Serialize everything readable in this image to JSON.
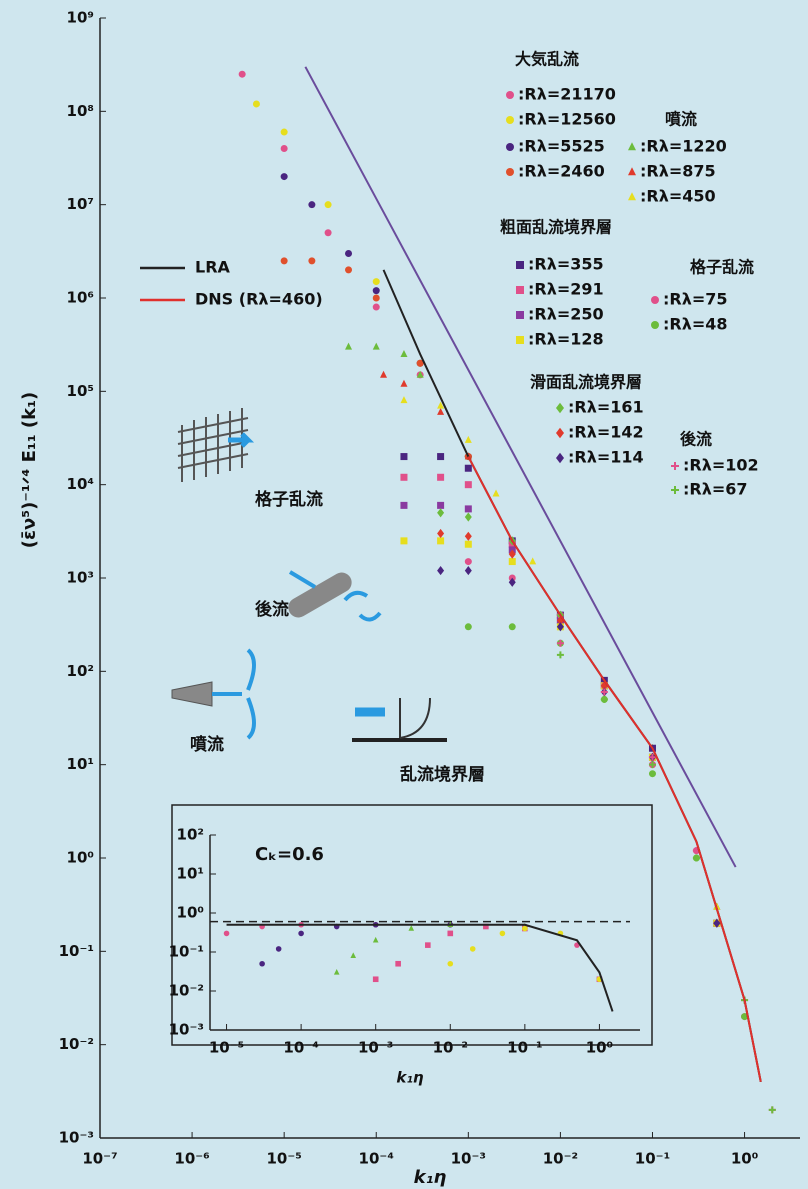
{
  "chart_data": [
    {
      "type": "scatter",
      "log_x": true,
      "log_y": true,
      "x_label": "k₁η",
      "y_label": "(ε̄ν⁵)⁻¹ᐟ⁴ E₁₁ (k₁)",
      "xlim": [
        1e-07,
        4
      ],
      "ylim": [
        0.001,
        1000000000.0
      ],
      "xticks": [
        {
          "value": 1e-07,
          "label": "10⁻⁷"
        },
        {
          "value": 1e-06,
          "label": "10⁻⁶"
        },
        {
          "value": 1e-05,
          "label": "10⁻⁵"
        },
        {
          "value": 0.0001,
          "label": "10⁻⁴"
        },
        {
          "value": 0.001,
          "label": "10⁻³"
        },
        {
          "value": 0.01,
          "label": "10⁻²"
        },
        {
          "value": 0.1,
          "label": "10⁻¹"
        },
        {
          "value": 1,
          "label": "10⁰"
        }
      ],
      "yticks": [
        {
          "value": 0.001,
          "label": "10⁻³"
        },
        {
          "value": 0.01,
          "label": "10⁻²"
        },
        {
          "value": 0.1,
          "label": "10⁻¹"
        },
        {
          "value": 1,
          "label": "10⁰"
        },
        {
          "value": 10,
          "label": "10¹"
        },
        {
          "value": 100,
          "label": "10²"
        },
        {
          "value": 1000.0,
          "label": "10³"
        },
        {
          "value": 10000.0,
          "label": "10⁴"
        },
        {
          "value": 100000.0,
          "label": "10⁵"
        },
        {
          "value": 1000000.0,
          "label": "10⁶"
        },
        {
          "value": 10000000.0,
          "label": "10⁷"
        },
        {
          "value": 100000000.0,
          "label": "10⁸"
        },
        {
          "value": 1000000000.0,
          "label": "10⁹"
        }
      ],
      "groups": [
        "大気乱流",
        "噴流",
        "粗面乱流境界層",
        "格子乱流",
        "滑面乱流境界層",
        "後流"
      ],
      "annotations": [
        "格子乱流",
        "後流",
        "噴流",
        "乱流境界層"
      ],
      "series": [
        {
          "name": ":Rλ=21170",
          "group": 0,
          "marker": "circle",
          "color": "#e0508a",
          "x": [
            3.5e-06,
            1e-05,
            3e-05,
            0.0001,
            0.0003,
            0.001,
            0.01,
            0.1
          ],
          "values": [
            250000000.0,
            40000000.0,
            5000000.0,
            800000.0,
            150000.0,
            20000.0,
            400,
            10
          ]
        },
        {
          "name": ":Rλ=12560",
          "group": 0,
          "marker": "circle",
          "color": "#e6de1e",
          "x": [
            5e-06,
            1e-05,
            3e-05,
            0.0001,
            0.0003,
            0.001,
            0.01,
            0.1
          ],
          "values": [
            120000000.0,
            60000000.0,
            10000000.0,
            1500000.0,
            200000.0,
            20000.0,
            400,
            12
          ]
        },
        {
          "name": ":Rλ=5525",
          "group": 0,
          "marker": "circle",
          "color": "#4a2580",
          "x": [
            1e-05,
            2e-05,
            5e-05,
            0.0001,
            0.0003,
            0.001,
            0.01,
            0.1
          ],
          "values": [
            20000000.0,
            10000000.0,
            3000000.0,
            1200000.0,
            200000.0,
            20000.0,
            400,
            12
          ]
        },
        {
          "name": ":Rλ=2460",
          "group": 0,
          "marker": "circle",
          "color": "#e0502c",
          "x": [
            1e-05,
            2e-05,
            5e-05,
            0.0001,
            0.0003,
            0.001,
            0.01,
            0.1
          ],
          "values": [
            2500000.0,
            2500000.0,
            2000000.0,
            1000000.0,
            200000.0,
            20000.0,
            400,
            12
          ]
        },
        {
          "name": ":Rλ=1220",
          "group": 1,
          "marker": "triangle",
          "color": "#6cbc3c",
          "x": [
            5e-05,
            0.0001,
            0.0002,
            0.0003,
            0.001,
            0.003,
            0.01,
            0.1,
            0.5
          ],
          "values": [
            300000.0,
            300000.0,
            250000.0,
            150000.0,
            20000.0,
            2500,
            400,
            15,
            0.3
          ]
        },
        {
          "name": ":Rλ=875",
          "group": 1,
          "marker": "triangle",
          "color": "#e03a2c",
          "x": [
            0.00012,
            0.0002,
            0.0005,
            0.001,
            0.003,
            0.01,
            0.1,
            0.5
          ],
          "values": [
            150000.0,
            120000.0,
            60000.0,
            20000.0,
            2500,
            400,
            15,
            0.3
          ]
        },
        {
          "name": ":Rλ=450",
          "group": 1,
          "marker": "triangle",
          "color": "#e6de1e",
          "x": [
            0.0002,
            0.0005,
            0.001,
            0.002,
            0.005,
            0.01,
            0.1,
            0.5
          ],
          "values": [
            80000.0,
            70000.0,
            30000.0,
            8000,
            1500,
            400,
            15,
            0.3
          ]
        },
        {
          "name": ":Rλ=355",
          "group": 2,
          "marker": "square",
          "color": "#4a2580",
          "x": [
            0.0002,
            0.0005,
            0.001,
            0.003,
            0.01,
            0.03,
            0.1,
            0.5
          ],
          "values": [
            20000.0,
            20000.0,
            15000.0,
            2500,
            400,
            80,
            15,
            0.2
          ]
        },
        {
          "name": ":Rλ=291",
          "group": 2,
          "marker": "square",
          "color": "#e0508a",
          "x": [
            0.0002,
            0.0005,
            0.001,
            0.003,
            0.01,
            0.03,
            0.1,
            0.5
          ],
          "values": [
            12000.0,
            12000.0,
            10000.0,
            2300,
            350,
            70,
            12,
            0.2
          ]
        },
        {
          "name": ":Rλ=250",
          "group": 2,
          "marker": "square",
          "color": "#8a3aa0",
          "x": [
            0.0002,
            0.0005,
            0.001,
            0.003,
            0.01,
            0.03,
            0.1,
            0.5
          ],
          "values": [
            6000,
            6000,
            5500,
            2000,
            350,
            70,
            12,
            0.2
          ]
        },
        {
          "name": ":Rλ=128",
          "group": 2,
          "marker": "square",
          "color": "#e6de1e",
          "x": [
            0.0002,
            0.0005,
            0.001,
            0.003,
            0.01,
            0.03,
            0.1,
            0.5
          ],
          "values": [
            2500,
            2500,
            2300,
            1500,
            300,
            70,
            12,
            0.2
          ]
        },
        {
          "name": ":Rλ=75",
          "group": 3,
          "marker": "circle",
          "color": "#e0508a",
          "x": [
            0.001,
            0.003,
            0.01,
            0.03,
            0.1,
            0.3,
            1
          ],
          "values": [
            1500,
            1000,
            400,
            70,
            10,
            1.2,
            0.02
          ]
        },
        {
          "name": ":Rλ=48",
          "group": 3,
          "marker": "circle",
          "color": "#6cbc3c",
          "x": [
            0.001,
            0.003,
            0.01,
            0.03,
            0.1,
            0.3,
            1
          ],
          "values": [
            300,
            300,
            200,
            50,
            8,
            1,
            0.02
          ]
        },
        {
          "name": ":Rλ=161",
          "group": 4,
          "marker": "diamond",
          "color": "#6cbc3c",
          "x": [
            0.0005,
            0.001,
            0.003,
            0.01,
            0.03,
            0.1,
            0.5
          ],
          "values": [
            5000,
            4500,
            2500,
            400,
            70,
            12,
            0.2
          ]
        },
        {
          "name": ":Rλ=142",
          "group": 4,
          "marker": "diamond",
          "color": "#e03a2c",
          "x": [
            0.0005,
            0.001,
            0.003,
            0.01,
            0.03,
            0.1,
            0.5
          ],
          "values": [
            3000,
            2800,
            1800,
            350,
            70,
            12,
            0.2
          ]
        },
        {
          "name": ":Rλ=114",
          "group": 4,
          "marker": "diamond",
          "color": "#4a2580",
          "x": [
            0.0005,
            0.001,
            0.003,
            0.01,
            0.03,
            0.1,
            0.5
          ],
          "values": [
            1200,
            1200,
            900,
            300,
            60,
            12,
            0.2
          ]
        },
        {
          "name": ":Rλ=102",
          "group": 5,
          "marker": "plus",
          "color": "#e0508a",
          "x": [
            0.01,
            0.03,
            0.1,
            0.3,
            1,
            2
          ],
          "values": [
            200,
            60,
            12,
            1.2,
            0.03,
            0.002
          ]
        },
        {
          "name": ":Rλ=67",
          "group": 5,
          "marker": "plus",
          "color": "#6cbc3c",
          "x": [
            0.01,
            0.03,
            0.1,
            0.3,
            1,
            2
          ],
          "values": [
            150,
            50,
            10,
            1,
            0.03,
            0.002
          ]
        },
        {
          "marker": "line",
          "color": "#6a4c9c",
          "x": [
            1.7e-05,
            0.8
          ],
          "values": [
            300000000.0,
            0.8
          ]
        },
        {
          "name": "LRA",
          "marker": "line",
          "color": "#222222",
          "x": [
            0.00012,
            0.0003,
            0.001,
            0.003,
            0.01,
            0.03,
            0.1,
            0.3,
            1,
            1.5
          ],
          "values": [
            2000000.0,
            250000.0,
            20000.0,
            2500,
            400,
            80,
            15,
            1.5,
            0.03,
            0.004
          ]
        },
        {
          "name": "DNS (Rλ=460)",
          "marker": "line",
          "color": "#e0302c",
          "x": [
            0.001,
            0.003,
            0.01,
            0.03,
            0.1,
            0.3,
            1,
            1.5
          ],
          "values": [
            20000.0,
            2500,
            400,
            80,
            15,
            1.5,
            0.03,
            0.004
          ]
        }
      ]
    },
    {
      "type": "scatter",
      "log_x": true,
      "log_y": true,
      "x_label": "k₁η",
      "annotation": "Cₖ=0.6",
      "hline": 0.6,
      "xlim": [
        6e-06,
        3.5
      ],
      "ylim": [
        0.001,
        100
      ],
      "xticks": [
        {
          "value": 1e-05,
          "label": "10⁻⁵"
        },
        {
          "value": 0.0001,
          "label": "10⁻⁴"
        },
        {
          "value": 0.001,
          "label": "10⁻³"
        },
        {
          "value": 0.01,
          "label": "10⁻²"
        },
        {
          "value": 0.1,
          "label": "10⁻¹"
        },
        {
          "value": 1,
          "label": "10⁰"
        }
      ],
      "yticks": [
        {
          "value": 0.001,
          "label": "10⁻³"
        },
        {
          "value": 0.01,
          "label": "10⁻²"
        },
        {
          "value": 0.1,
          "label": "10⁻¹"
        },
        {
          "value": 1,
          "label": "10⁰"
        },
        {
          "value": 10,
          "label": "10¹"
        },
        {
          "value": 100,
          "label": "10²"
        }
      ],
      "series": [
        {
          "marker": "circle",
          "color": "#e0508a",
          "x": [
            1e-05,
            3e-05,
            0.0001,
            0.001,
            0.01,
            0.1,
            0.5,
            1
          ],
          "values": [
            0.3,
            0.45,
            0.5,
            0.5,
            0.5,
            0.45,
            0.15,
            0.02
          ]
        },
        {
          "marker": "circle",
          "color": "#4a2580",
          "x": [
            3e-05,
            5e-05,
            0.0001,
            0.0003,
            0.001,
            0.01,
            0.1,
            1
          ],
          "values": [
            0.05,
            0.12,
            0.3,
            0.45,
            0.5,
            0.5,
            0.45,
            0.02
          ]
        },
        {
          "marker": "triangle",
          "color": "#6cbc3c",
          "x": [
            0.0003,
            0.0005,
            0.001,
            0.003,
            0.01,
            0.1,
            1
          ],
          "values": [
            0.03,
            0.08,
            0.2,
            0.4,
            0.5,
            0.45,
            0.02
          ]
        },
        {
          "marker": "square",
          "color": "#e0508a",
          "x": [
            0.001,
            0.002,
            0.005,
            0.01,
            0.03,
            0.1,
            1
          ],
          "values": [
            0.02,
            0.05,
            0.15,
            0.3,
            0.45,
            0.4,
            0.02
          ]
        },
        {
          "marker": "circle",
          "color": "#e6de1e",
          "x": [
            0.01,
            0.02,
            0.05,
            0.1,
            0.3,
            1
          ],
          "values": [
            0.05,
            0.12,
            0.3,
            0.4,
            0.3,
            0.02
          ]
        },
        {
          "marker": "line",
          "color": "#222222",
          "x": [
            1e-05,
            0.0001,
            0.001,
            0.01,
            0.1,
            0.5,
            1,
            1.5
          ],
          "values": [
            0.5,
            0.5,
            0.5,
            0.5,
            0.5,
            0.2,
            0.03,
            0.003
          ]
        }
      ]
    }
  ]
}
